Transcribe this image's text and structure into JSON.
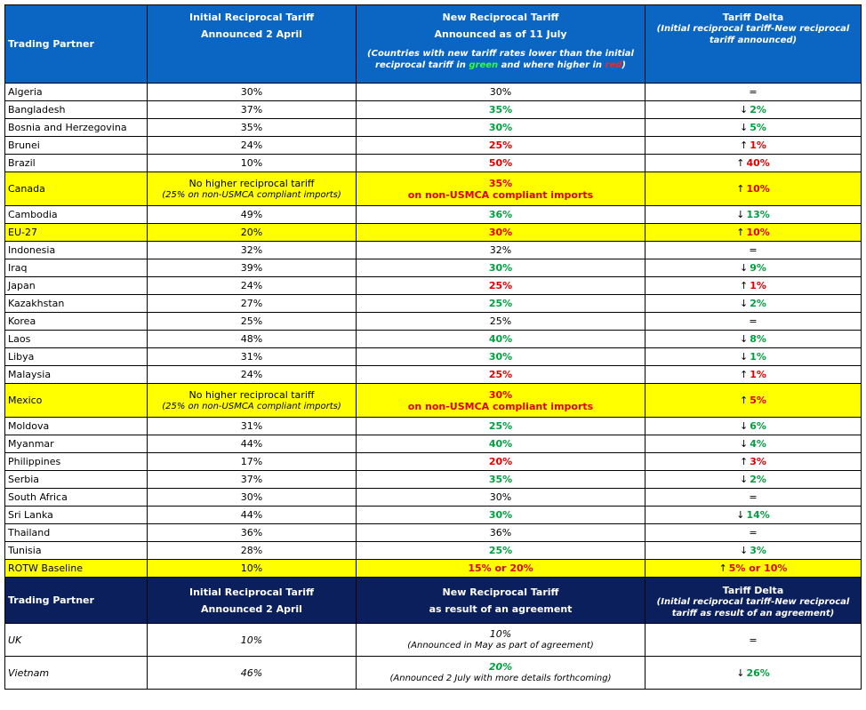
{
  "header": {
    "partner": "Trading Partner",
    "initial_title": "Initial Reciprocal Tariff",
    "initial_sub": "Announced 2 April",
    "new_title": "New Reciprocal Tariff",
    "new_sub": "Announced as of 11 July",
    "new_note_a": "(Countries with new tariff rates lower than the initial reciprocal tariff in",
    "new_note_green": "green",
    "new_note_b": "and where higher in",
    "new_note_red": "red",
    "new_note_c": ")",
    "delta_title": "Tariff Delta",
    "delta_sub": "(Initial reciprocal tariff-New reciprocal tariff announced)"
  },
  "rows": [
    {
      "partner": "Algeria",
      "initial": "30%",
      "new": "30%",
      "delta": "=",
      "dir": "eq"
    },
    {
      "partner": "Bangladesh",
      "initial": "37%",
      "new": "35%",
      "delta": "2%",
      "dir": "down"
    },
    {
      "partner": "Bosnia and Herzegovina",
      "initial": "35%",
      "new": "30%",
      "delta": "5%",
      "dir": "down"
    },
    {
      "partner": "Brunei",
      "initial": "24%",
      "new": "25%",
      "delta": "1%",
      "dir": "up"
    },
    {
      "partner": "Brazil",
      "initial": "10%",
      "new": "50%",
      "delta": "40%",
      "dir": "up"
    },
    {
      "partner": "Canada",
      "initial": "No higher reciprocal tariff",
      "initial_note": "(25% on non-USMCA compliant imports)",
      "new": "35%",
      "new_note": "on non-USMCA compliant imports",
      "delta": "10%",
      "dir": "up",
      "highlight": true,
      "tall": true
    },
    {
      "partner": "Cambodia",
      "initial": "49%",
      "new": "36%",
      "delta": "13%",
      "dir": "down"
    },
    {
      "partner": "EU-27",
      "initial": "20%",
      "new": "30%",
      "delta": "10%",
      "dir": "up",
      "highlight": true
    },
    {
      "partner": "Indonesia",
      "initial": "32%",
      "new": "32%",
      "delta": "=",
      "dir": "eq"
    },
    {
      "partner": "Iraq",
      "initial": "39%",
      "new": "30%",
      "delta": "9%",
      "dir": "down"
    },
    {
      "partner": "Japan",
      "initial": "24%",
      "new": "25%",
      "delta": "1%",
      "dir": "up"
    },
    {
      "partner": "Kazakhstan",
      "initial": "27%",
      "new": "25%",
      "delta": "2%",
      "dir": "down"
    },
    {
      "partner": "Korea",
      "initial": "25%",
      "new": "25%",
      "delta": "=",
      "dir": "eq"
    },
    {
      "partner": "Laos",
      "initial": "48%",
      "new": "40%",
      "delta": "8%",
      "dir": "down"
    },
    {
      "partner": "Libya",
      "initial": "31%",
      "new": "30%",
      "delta": "1%",
      "dir": "down"
    },
    {
      "partner": "Malaysia",
      "initial": "24%",
      "new": "25%",
      "delta": "1%",
      "dir": "up"
    },
    {
      "partner": "Mexico",
      "initial": "No higher reciprocal tariff",
      "initial_note": "(25% on non-USMCA compliant imports)",
      "new": "30%",
      "new_note": "on non-USMCA compliant imports",
      "delta": "5%",
      "dir": "up",
      "highlight": true,
      "tall": true
    },
    {
      "partner": "Moldova",
      "initial": "31%",
      "new": "25%",
      "delta": "6%",
      "dir": "down"
    },
    {
      "partner": "Myanmar",
      "initial": "44%",
      "new": "40%",
      "delta": "4%",
      "dir": "down"
    },
    {
      "partner": "Philippines",
      "initial": "17%",
      "new": "20%",
      "delta": "3%",
      "dir": "up"
    },
    {
      "partner": "Serbia",
      "initial": "37%",
      "new": "35%",
      "delta": "2%",
      "dir": "down"
    },
    {
      "partner": "South Africa",
      "initial": "30%",
      "new": "30%",
      "delta": "=",
      "dir": "eq"
    },
    {
      "partner": "Sri Lanka",
      "initial": "44%",
      "new": "30%",
      "delta": "14%",
      "dir": "down"
    },
    {
      "partner": "Thailand",
      "initial": "36%",
      "new": "36%",
      "delta": "=",
      "dir": "eq"
    },
    {
      "partner": "Tunisia",
      "initial": "28%",
      "new": "25%",
      "delta": "3%",
      "dir": "down"
    },
    {
      "partner": "ROTW Baseline",
      "initial": "10%",
      "new": "15% or 20%",
      "delta": "5% or 10%",
      "dir": "up",
      "highlight": true
    }
  ],
  "header2": {
    "partner": "Trading Partner",
    "initial_title": "Initial Reciprocal Tariff",
    "initial_sub": "Announced 2 April",
    "new_title": "New Reciprocal Tariff",
    "new_sub": "as result of an agreement",
    "delta_title": "Tariff Delta",
    "delta_sub": "(Initial reciprocal tariff-New reciprocal tariff as result of an agreement)"
  },
  "agreements": [
    {
      "partner": "UK",
      "initial": "10%",
      "new": "10%",
      "new_note": "(Announced in May as part of agreement)",
      "delta": "=",
      "dir": "eq"
    },
    {
      "partner": "Vietnam",
      "initial": "46%",
      "new": "20%",
      "new_note": "(Announced 2 July with more details forthcoming)",
      "delta": "26%",
      "dir": "down"
    }
  ],
  "colors": {
    "header_blue": "#0a66c2",
    "header_navy": "#0b1f5c",
    "highlight": "#ffff00",
    "lower": "#00a040",
    "higher": "#e00000"
  },
  "icons": {
    "up": "arrow-up-icon",
    "down": "arrow-down-icon"
  }
}
